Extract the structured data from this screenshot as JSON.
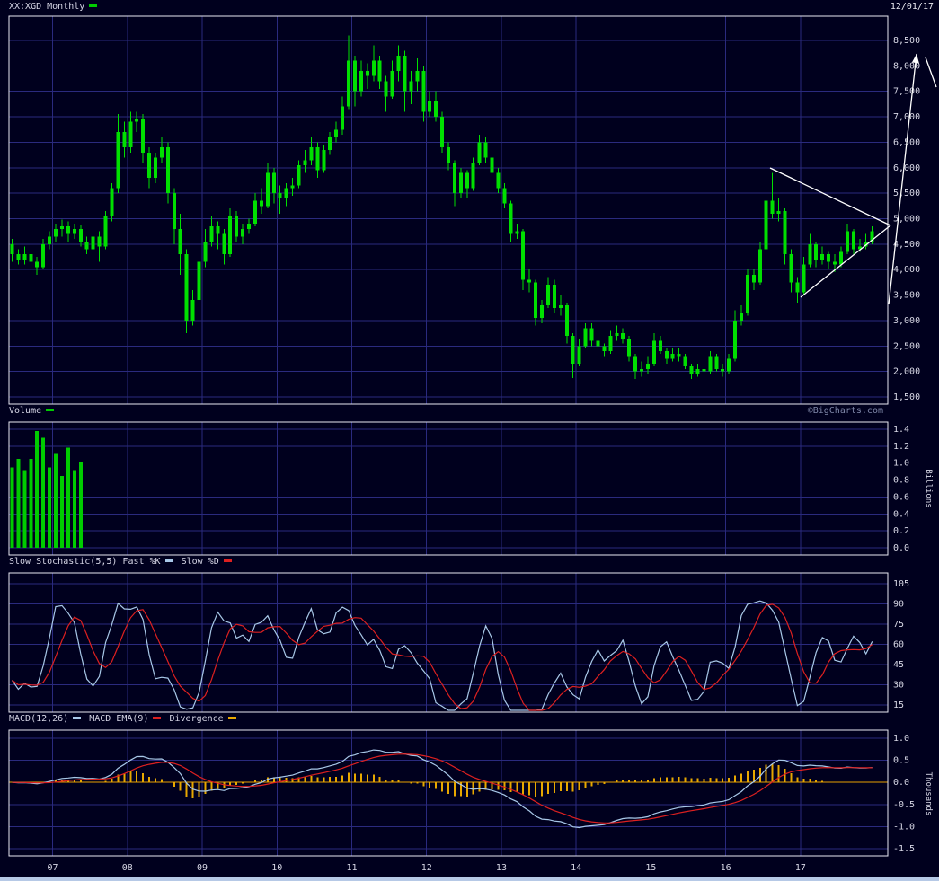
{
  "header": {
    "symbol": "XX:XGD Monthly",
    "date": "12/01/17"
  },
  "watermark": "©BigCharts.com",
  "colors": {
    "background": "#00001e",
    "grid": "#2a2a7e",
    "frame": "#e9e9f2",
    "price": "#00e000",
    "volume": "#00cc00",
    "stoch_k": "#a8c8e8",
    "stoch_d": "#dd2020",
    "macd_line": "#a8c8e8",
    "macd_signal": "#dd2020",
    "divergence": "#e8a800",
    "zero_line": "#e8a000",
    "annotation": "#ffffff",
    "text": "#d8d8e6",
    "watermark": "#7e86a8",
    "bottom_strip": "#b6c9e6"
  },
  "legends": {
    "price": [
      {
        "label": "XX:XGD Monthly",
        "color": "#00cc00"
      }
    ],
    "volume": [
      {
        "label": "Volume",
        "color": "#00cc00"
      }
    ],
    "stochastic": [
      {
        "label": "Slow Stochastic(5,5) Fast %K",
        "color": "#a8c8e8"
      },
      {
        "label": "Slow %D",
        "color": "#dd2020"
      }
    ],
    "macd": [
      {
        "label": "MACD(12,26)",
        "color": "#a8c8e8"
      },
      {
        "label": "MACD EMA(9)",
        "color": "#dd2020"
      },
      {
        "label": "Divergence",
        "color": "#e8a800"
      }
    ]
  },
  "panels": {
    "price": {
      "y_ticks": [
        "8,500",
        "8,000",
        "7,500",
        "7,000",
        "6,500",
        "6,000",
        "5,500",
        "5,000",
        "4,500",
        "4,000",
        "3,500",
        "3,000",
        "2,500",
        "2,000",
        "1,500"
      ]
    },
    "volume": {
      "y_ticks": [
        "1.4",
        "1.2",
        "1.0",
        "0.8",
        "0.6",
        "0.4",
        "0.2",
        "0.0"
      ],
      "unit_label": "Billions"
    },
    "stochastic": {
      "y_ticks": [
        "105",
        "90",
        "75",
        "60",
        "45",
        "30",
        "15"
      ]
    },
    "macd": {
      "y_ticks": [
        "1.0",
        "0.5",
        "0.0",
        "-0.5",
        "-1.0",
        "-1.5"
      ],
      "unit_label": "Thousands"
    }
  },
  "x_axis": {
    "labels": [
      "07",
      "08",
      "09",
      "10",
      "11",
      "12",
      "13",
      "14",
      "15",
      "16",
      "17"
    ],
    "month_indices": [
      7,
      19,
      31,
      43,
      55,
      67,
      79,
      91,
      103,
      115,
      127
    ]
  },
  "chart_data": {
    "type": "candlestick",
    "symbol": "XX:XGD",
    "frequency": "monthly",
    "start": "2006-06",
    "end": "2017-12",
    "price_axis": {
      "min": 1500,
      "max": 8500,
      "step": 500
    },
    "volume_axis": {
      "min": 0.0,
      "max": 1.4,
      "step": 0.2,
      "units": "Billions"
    },
    "stochastic_axis": {
      "min": 15,
      "max": 105,
      "step": 15
    },
    "macd_axis": {
      "min": -1.5,
      "max": 1.0,
      "step": 0.5,
      "units": "Thousands"
    },
    "indicators": {
      "slow_stochastic": {
        "k_period": 5,
        "d_period": 5
      },
      "macd": {
        "fast_period": 12,
        "slow_period": 26,
        "signal_period": 9
      }
    },
    "ohlc_format": [
      "open",
      "high",
      "low",
      "close"
    ],
    "ohlc": [
      [
        4500,
        4600,
        4150,
        4300
      ],
      [
        4300,
        4400,
        4100,
        4200
      ],
      [
        4200,
        4450,
        4100,
        4300
      ],
      [
        4300,
        4380,
        4000,
        4150
      ],
      [
        4150,
        4250,
        3900,
        4050
      ],
      [
        4050,
        4600,
        4000,
        4500
      ],
      [
        4500,
        4750,
        4400,
        4650
      ],
      [
        4650,
        4900,
        4550,
        4800
      ],
      [
        4800,
        4980,
        4650,
        4850
      ],
      [
        4850,
        4950,
        4550,
        4700
      ],
      [
        4700,
        4900,
        4600,
        4800
      ],
      [
        4800,
        4880,
        4450,
        4550
      ],
      [
        4550,
        4650,
        4300,
        4400
      ],
      [
        4400,
        4750,
        4300,
        4650
      ],
      [
        4650,
        4750,
        4150,
        4450
      ],
      [
        4450,
        5150,
        4400,
        5050
      ],
      [
        5050,
        5700,
        4950,
        5600
      ],
      [
        5600,
        7050,
        5500,
        6700
      ],
      [
        6700,
        6900,
        6200,
        6400
      ],
      [
        6400,
        7100,
        6300,
        6900
      ],
      [
        6900,
        7100,
        6700,
        6950
      ],
      [
        6950,
        7050,
        6100,
        6300
      ],
      [
        6300,
        6400,
        5600,
        5800
      ],
      [
        5800,
        6300,
        5700,
        6200
      ],
      [
        6200,
        6600,
        6100,
        6400
      ],
      [
        6400,
        6500,
        5300,
        5500
      ],
      [
        5500,
        5600,
        4500,
        4800
      ],
      [
        4800,
        5100,
        3900,
        4300
      ],
      [
        4300,
        4400,
        2750,
        3000
      ],
      [
        3000,
        3600,
        2900,
        3400
      ],
      [
        3400,
        4300,
        3300,
        4150
      ],
      [
        4150,
        4800,
        4050,
        4550
      ],
      [
        4550,
        5050,
        4450,
        4850
      ],
      [
        4850,
        4950,
        4400,
        4700
      ],
      [
        4700,
        4800,
        4100,
        4300
      ],
      [
        4300,
        5200,
        4250,
        5050
      ],
      [
        5050,
        5150,
        4550,
        4650
      ],
      [
        4650,
        4900,
        4500,
        4800
      ],
      [
        4800,
        5000,
        4700,
        4900
      ],
      [
        4900,
        5500,
        4850,
        5350
      ],
      [
        5350,
        5600,
        5100,
        5250
      ],
      [
        5250,
        6100,
        5200,
        5900
      ],
      [
        5900,
        6000,
        5300,
        5500
      ],
      [
        5500,
        5650,
        5100,
        5400
      ],
      [
        5400,
        5700,
        5250,
        5600
      ],
      [
        5600,
        5800,
        5450,
        5650
      ],
      [
        5650,
        6150,
        5600,
        6050
      ],
      [
        6050,
        6350,
        5900,
        6150
      ],
      [
        6150,
        6600,
        6050,
        6400
      ],
      [
        6400,
        6500,
        5800,
        5950
      ],
      [
        5950,
        6450,
        5900,
        6350
      ],
      [
        6350,
        6700,
        6250,
        6600
      ],
      [
        6600,
        6900,
        6500,
        6750
      ],
      [
        6750,
        7400,
        6650,
        7200
      ],
      [
        7200,
        8600,
        7150,
        8100
      ],
      [
        8100,
        8200,
        7200,
        7500
      ],
      [
        7500,
        8100,
        7400,
        7900
      ],
      [
        7900,
        8050,
        7550,
        7800
      ],
      [
        7800,
        8400,
        7700,
        8100
      ],
      [
        8100,
        8200,
        7550,
        7700
      ],
      [
        7700,
        7800,
        7100,
        7400
      ],
      [
        7400,
        8100,
        7350,
        7900
      ],
      [
        7900,
        8400,
        7700,
        8200
      ],
      [
        8200,
        8300,
        7100,
        7500
      ],
      [
        7500,
        7900,
        7250,
        7700
      ],
      [
        7700,
        8150,
        7500,
        7900
      ],
      [
        7900,
        8000,
        6900,
        7100
      ],
      [
        7100,
        7500,
        7000,
        7300
      ],
      [
        7300,
        7500,
        6900,
        7000
      ],
      [
        7000,
        7100,
        6300,
        6400
      ],
      [
        6400,
        6500,
        5950,
        6100
      ],
      [
        6100,
        6150,
        5250,
        5500
      ],
      [
        5500,
        6000,
        5400,
        5900
      ],
      [
        5900,
        5950,
        5400,
        5600
      ],
      [
        5600,
        6200,
        5550,
        6100
      ],
      [
        6100,
        6650,
        6050,
        6500
      ],
      [
        6500,
        6600,
        6100,
        6200
      ],
      [
        6200,
        6300,
        5800,
        5900
      ],
      [
        5900,
        6000,
        5500,
        5600
      ],
      [
        5600,
        5700,
        5200,
        5300
      ],
      [
        5300,
        5350,
        4550,
        4700
      ],
      [
        4700,
        4900,
        4600,
        4750
      ],
      [
        4750,
        4800,
        3600,
        3800
      ],
      [
        3800,
        4000,
        3550,
        3750
      ],
      [
        3750,
        3800,
        2900,
        3050
      ],
      [
        3050,
        3400,
        2950,
        3300
      ],
      [
        3300,
        3850,
        3250,
        3700
      ],
      [
        3700,
        3800,
        3150,
        3250
      ],
      [
        3250,
        3500,
        3100,
        3300
      ],
      [
        3300,
        3350,
        2550,
        2700
      ],
      [
        2700,
        2750,
        1870,
        2150
      ],
      [
        2150,
        2650,
        2100,
        2500
      ],
      [
        2500,
        2950,
        2450,
        2850
      ],
      [
        2850,
        2950,
        2500,
        2600
      ],
      [
        2600,
        2700,
        2400,
        2500
      ],
      [
        2500,
        2550,
        2300,
        2400
      ],
      [
        2400,
        2800,
        2350,
        2700
      ],
      [
        2700,
        2900,
        2600,
        2750
      ],
      [
        2750,
        2850,
        2550,
        2650
      ],
      [
        2650,
        2700,
        2200,
        2300
      ],
      [
        2300,
        2350,
        1850,
        2000
      ],
      [
        2000,
        2200,
        1900,
        2050
      ],
      [
        2050,
        2300,
        1950,
        2150
      ],
      [
        2150,
        2750,
        2100,
        2600
      ],
      [
        2600,
        2700,
        2350,
        2400
      ],
      [
        2400,
        2450,
        2150,
        2250
      ],
      [
        2250,
        2450,
        2200,
        2350
      ],
      [
        2350,
        2450,
        2200,
        2300
      ],
      [
        2300,
        2350,
        2050,
        2100
      ],
      [
        2100,
        2150,
        1850,
        1950
      ],
      [
        1950,
        2150,
        1900,
        2050
      ],
      [
        2050,
        2150,
        1900,
        2000
      ],
      [
        2000,
        2400,
        1950,
        2300
      ],
      [
        2300,
        2350,
        2000,
        2050
      ],
      [
        2050,
        2150,
        1900,
        2000
      ],
      [
        2000,
        2350,
        1950,
        2250
      ],
      [
        2250,
        3200,
        2200,
        3000
      ],
      [
        3000,
        3300,
        2900,
        3150
      ],
      [
        3150,
        4000,
        3100,
        3900
      ],
      [
        3900,
        4000,
        3600,
        3750
      ],
      [
        3750,
        4550,
        3700,
        4400
      ],
      [
        4400,
        5600,
        4350,
        5350
      ],
      [
        5350,
        5900,
        5000,
        5100
      ],
      [
        5100,
        5400,
        4950,
        5150
      ],
      [
        5150,
        5200,
        4100,
        4300
      ],
      [
        4300,
        4400,
        3550,
        3750
      ],
      [
        3750,
        3850,
        3350,
        3550
      ],
      [
        3550,
        4250,
        3500,
        4100
      ],
      [
        4100,
        4700,
        4050,
        4500
      ],
      [
        4500,
        4550,
        4050,
        4200
      ],
      [
        4200,
        4450,
        4100,
        4300
      ],
      [
        4300,
        4350,
        4000,
        4150
      ],
      [
        4150,
        4300,
        3950,
        4100
      ],
      [
        4100,
        4450,
        4050,
        4350
      ],
      [
        4350,
        4900,
        4300,
        4750
      ],
      [
        4750,
        4800,
        4300,
        4400
      ],
      [
        4400,
        4600,
        4350,
        4450
      ],
      [
        4450,
        4700,
        4400,
        4550
      ],
      [
        4550,
        4850,
        4500,
        4750
      ]
    ],
    "volume_billions": [
      0.95,
      1.05,
      0.92,
      1.05,
      1.38,
      1.3,
      0.95,
      1.12,
      0.85,
      1.18,
      0.92,
      1.02
    ]
  },
  "annotations": {
    "pennant": {
      "upper_line": [
        [
          857,
          187
        ],
        [
          991,
          251
        ]
      ],
      "lower_line": [
        [
          891,
          331
        ],
        [
          991,
          251
        ]
      ]
    },
    "arrow": {
      "from": [
        989,
        339
      ],
      "to": [
        1020,
        60
      ]
    },
    "arrow_barb": {
      "from": [
        1030,
        64
      ],
      "to": [
        1042,
        97
      ]
    }
  }
}
